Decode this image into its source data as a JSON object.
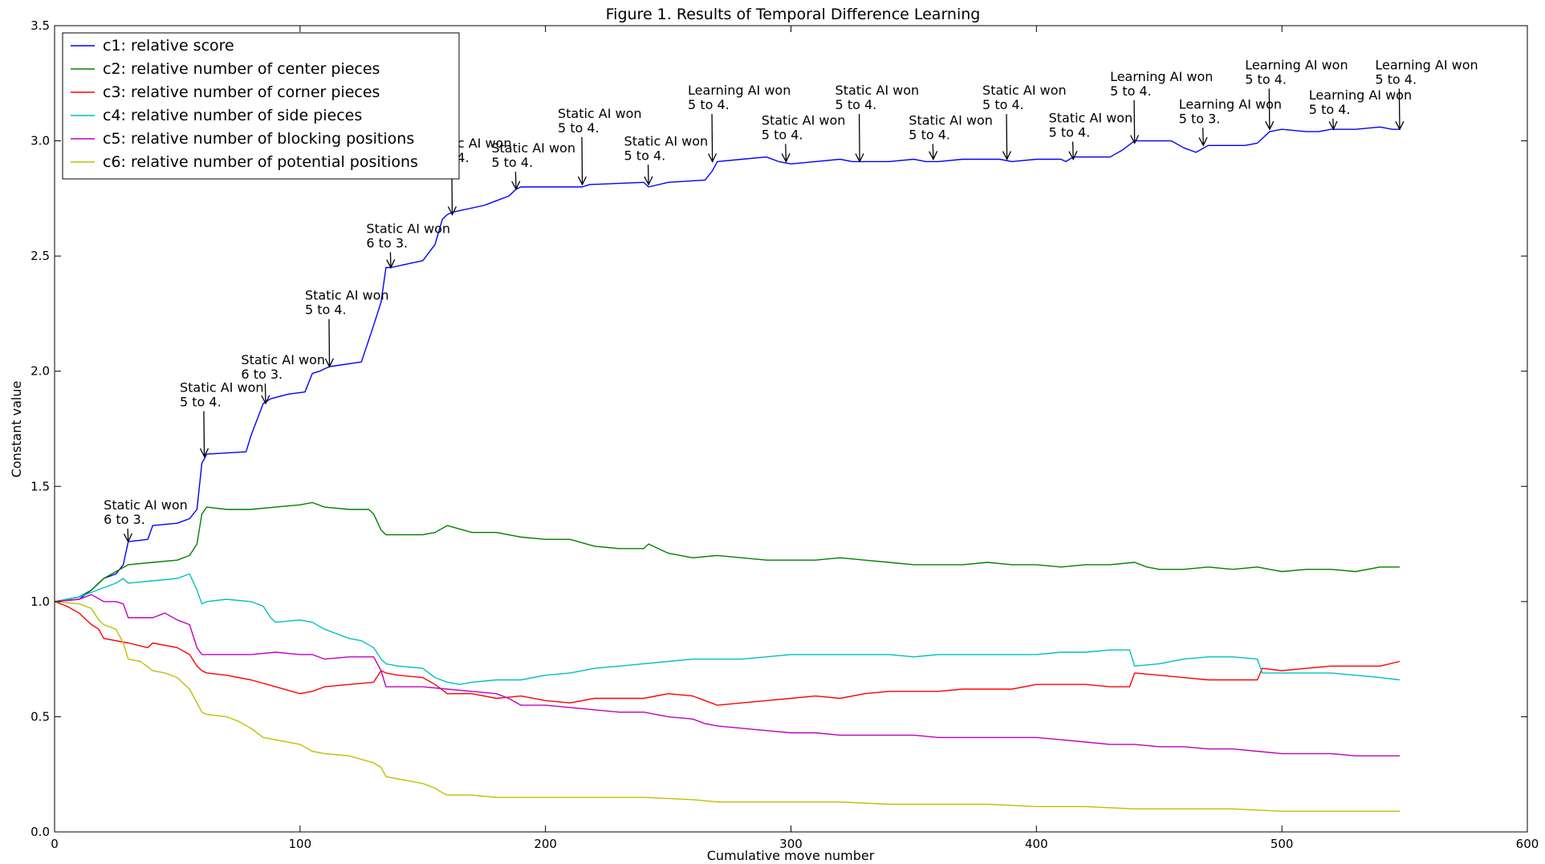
{
  "chart_data": {
    "type": "line",
    "title": "Figure 1. Results of Temporal Difference Learning",
    "xlabel": "Cumulative move number",
    "ylabel": "Constant value",
    "xlim": [
      0,
      600
    ],
    "ylim": [
      0.0,
      3.5
    ],
    "xticks": [
      "0",
      "100",
      "200",
      "300",
      "400",
      "500",
      "600"
    ],
    "yticks": [
      "0.0",
      "0.5",
      "1.0",
      "1.5",
      "2.0",
      "2.5",
      "3.0",
      "3.5"
    ],
    "grid": false,
    "legend_position": "top-left",
    "series": [
      {
        "name": "c1: relative score",
        "color": "#0000ff",
        "x": [
          0,
          10,
          15,
          20,
          25,
          28,
          30,
          38,
          40,
          50,
          55,
          58,
          60,
          62,
          78,
          80,
          85,
          88,
          95,
          102,
          105,
          108,
          110,
          112,
          125,
          130,
          133,
          135,
          137,
          150,
          155,
          158,
          160,
          162,
          175,
          180,
          185,
          188,
          190,
          200,
          215,
          218,
          240,
          242,
          250,
          265,
          268,
          270,
          280,
          290,
          295,
          300,
          310,
          320,
          325,
          330,
          340,
          350,
          355,
          360,
          370,
          380,
          385,
          390,
          400,
          410,
          412,
          415,
          430,
          435,
          440,
          450,
          455,
          460,
          465,
          470,
          485,
          490,
          495,
          500,
          510,
          515,
          520,
          530,
          540,
          545,
          548
        ],
        "y": [
          1.0,
          1.01,
          1.05,
          1.1,
          1.12,
          1.16,
          1.26,
          1.27,
          1.33,
          1.34,
          1.36,
          1.4,
          1.6,
          1.64,
          1.65,
          1.72,
          1.86,
          1.88,
          1.9,
          1.91,
          1.99,
          2.0,
          2.01,
          2.02,
          2.04,
          2.2,
          2.3,
          2.45,
          2.45,
          2.48,
          2.55,
          2.66,
          2.68,
          2.69,
          2.72,
          2.74,
          2.76,
          2.79,
          2.8,
          2.8,
          2.8,
          2.81,
          2.82,
          2.8,
          2.82,
          2.83,
          2.87,
          2.91,
          2.92,
          2.93,
          2.91,
          2.9,
          2.91,
          2.92,
          2.91,
          2.91,
          2.91,
          2.92,
          2.91,
          2.91,
          2.92,
          2.92,
          2.92,
          2.91,
          2.92,
          2.92,
          2.91,
          2.93,
          2.93,
          2.96,
          3.0,
          3.0,
          3.0,
          2.97,
          2.95,
          2.98,
          2.98,
          2.99,
          3.04,
          3.05,
          3.04,
          3.04,
          3.05,
          3.05,
          3.06,
          3.05,
          3.05
        ]
      },
      {
        "name": "c2: relative number of center pieces",
        "color": "#008000",
        "x": [
          0,
          10,
          15,
          20,
          30,
          40,
          50,
          55,
          58,
          60,
          62,
          70,
          80,
          90,
          100,
          105,
          110,
          120,
          128,
          130,
          133,
          135,
          140,
          150,
          155,
          160,
          170,
          180,
          190,
          200,
          210,
          220,
          230,
          240,
          242,
          250,
          260,
          270,
          280,
          290,
          300,
          310,
          320,
          330,
          340,
          350,
          360,
          370,
          380,
          390,
          400,
          410,
          420,
          430,
          440,
          445,
          450,
          460,
          470,
          480,
          490,
          495,
          500,
          510,
          520,
          530,
          540,
          548
        ],
        "y": [
          1.0,
          1.02,
          1.05,
          1.1,
          1.16,
          1.17,
          1.18,
          1.2,
          1.25,
          1.38,
          1.41,
          1.4,
          1.4,
          1.41,
          1.42,
          1.43,
          1.41,
          1.4,
          1.4,
          1.38,
          1.31,
          1.29,
          1.29,
          1.29,
          1.3,
          1.33,
          1.3,
          1.3,
          1.28,
          1.27,
          1.27,
          1.24,
          1.23,
          1.23,
          1.25,
          1.21,
          1.19,
          1.2,
          1.19,
          1.18,
          1.18,
          1.18,
          1.19,
          1.18,
          1.17,
          1.16,
          1.16,
          1.16,
          1.17,
          1.16,
          1.16,
          1.15,
          1.16,
          1.16,
          1.17,
          1.15,
          1.14,
          1.14,
          1.15,
          1.14,
          1.15,
          1.14,
          1.13,
          1.14,
          1.14,
          1.13,
          1.15,
          1.15
        ]
      },
      {
        "name": "c3: relative number of corner pieces",
        "color": "#ff0000",
        "x": [
          0,
          5,
          10,
          15,
          18,
          20,
          30,
          38,
          40,
          50,
          55,
          58,
          60,
          62,
          70,
          80,
          90,
          100,
          105,
          110,
          120,
          130,
          133,
          135,
          140,
          150,
          155,
          160,
          170,
          180,
          190,
          200,
          210,
          220,
          230,
          240,
          250,
          260,
          265,
          270,
          280,
          290,
          300,
          310,
          320,
          330,
          340,
          350,
          360,
          370,
          380,
          390,
          400,
          410,
          420,
          430,
          438,
          440,
          450,
          460,
          470,
          480,
          490,
          492,
          500,
          510,
          520,
          530,
          540,
          548
        ],
        "y": [
          1.0,
          0.98,
          0.95,
          0.9,
          0.88,
          0.84,
          0.82,
          0.8,
          0.82,
          0.8,
          0.77,
          0.72,
          0.7,
          0.69,
          0.68,
          0.66,
          0.63,
          0.6,
          0.61,
          0.63,
          0.64,
          0.65,
          0.7,
          0.69,
          0.68,
          0.67,
          0.64,
          0.6,
          0.6,
          0.58,
          0.59,
          0.57,
          0.56,
          0.58,
          0.58,
          0.58,
          0.6,
          0.59,
          0.57,
          0.55,
          0.56,
          0.57,
          0.58,
          0.59,
          0.58,
          0.6,
          0.61,
          0.61,
          0.61,
          0.62,
          0.62,
          0.62,
          0.64,
          0.64,
          0.64,
          0.63,
          0.63,
          0.69,
          0.68,
          0.67,
          0.66,
          0.66,
          0.66,
          0.71,
          0.7,
          0.71,
          0.72,
          0.72,
          0.72,
          0.74
        ]
      },
      {
        "name": "c4: relative number of side pieces",
        "color": "#00bfbf",
        "x": [
          0,
          10,
          15,
          20,
          25,
          28,
          30,
          40,
          50,
          55,
          58,
          60,
          62,
          70,
          80,
          85,
          88,
          90,
          100,
          105,
          110,
          115,
          120,
          125,
          130,
          133,
          135,
          140,
          150,
          155,
          160,
          165,
          170,
          180,
          190,
          200,
          210,
          220,
          230,
          240,
          250,
          260,
          270,
          280,
          290,
          300,
          310,
          320,
          330,
          340,
          350,
          360,
          370,
          380,
          390,
          400,
          410,
          420,
          430,
          438,
          440,
          450,
          460,
          470,
          480,
          490,
          492,
          500,
          510,
          520,
          530,
          540,
          548
        ],
        "y": [
          1.0,
          1.02,
          1.04,
          1.06,
          1.08,
          1.1,
          1.08,
          1.09,
          1.1,
          1.12,
          1.05,
          0.99,
          1.0,
          1.01,
          1.0,
          0.98,
          0.93,
          0.91,
          0.92,
          0.91,
          0.88,
          0.86,
          0.84,
          0.83,
          0.8,
          0.75,
          0.73,
          0.72,
          0.71,
          0.67,
          0.65,
          0.64,
          0.65,
          0.66,
          0.66,
          0.68,
          0.69,
          0.71,
          0.72,
          0.73,
          0.74,
          0.75,
          0.75,
          0.75,
          0.76,
          0.77,
          0.77,
          0.77,
          0.77,
          0.77,
          0.76,
          0.77,
          0.77,
          0.77,
          0.77,
          0.77,
          0.78,
          0.78,
          0.79,
          0.79,
          0.72,
          0.73,
          0.75,
          0.76,
          0.76,
          0.75,
          0.69,
          0.69,
          0.69,
          0.69,
          0.68,
          0.67,
          0.66
        ]
      },
      {
        "name": "c5: relative number of blocking positions",
        "color": "#bf00bf",
        "x": [
          0,
          10,
          15,
          20,
          25,
          28,
          30,
          40,
          45,
          50,
          55,
          58,
          60,
          62,
          70,
          80,
          90,
          100,
          105,
          110,
          120,
          130,
          133,
          135,
          140,
          150,
          160,
          170,
          180,
          185,
          190,
          200,
          210,
          220,
          230,
          240,
          250,
          260,
          265,
          270,
          280,
          290,
          300,
          310,
          320,
          330,
          340,
          350,
          360,
          370,
          380,
          390,
          400,
          410,
          420,
          430,
          440,
          450,
          460,
          470,
          480,
          490,
          500,
          510,
          520,
          530,
          540,
          548
        ],
        "y": [
          1.0,
          1.01,
          1.03,
          1.0,
          1.0,
          0.99,
          0.93,
          0.93,
          0.95,
          0.92,
          0.9,
          0.8,
          0.77,
          0.77,
          0.77,
          0.77,
          0.78,
          0.77,
          0.77,
          0.75,
          0.76,
          0.76,
          0.7,
          0.63,
          0.63,
          0.63,
          0.62,
          0.61,
          0.6,
          0.58,
          0.55,
          0.55,
          0.54,
          0.53,
          0.52,
          0.52,
          0.5,
          0.49,
          0.47,
          0.46,
          0.45,
          0.44,
          0.43,
          0.43,
          0.42,
          0.42,
          0.42,
          0.42,
          0.41,
          0.41,
          0.41,
          0.41,
          0.41,
          0.4,
          0.39,
          0.38,
          0.38,
          0.37,
          0.37,
          0.36,
          0.36,
          0.35,
          0.34,
          0.34,
          0.34,
          0.33,
          0.33,
          0.33
        ]
      },
      {
        "name": "c6: relative number of potential positions",
        "color": "#bfbf00",
        "x": [
          0,
          10,
          15,
          18,
          20,
          25,
          28,
          30,
          35,
          40,
          45,
          50,
          55,
          58,
          60,
          62,
          70,
          75,
          80,
          85,
          90,
          100,
          105,
          110,
          120,
          130,
          133,
          135,
          140,
          150,
          155,
          158,
          160,
          170,
          180,
          190,
          200,
          220,
          240,
          260,
          270,
          280,
          300,
          320,
          340,
          360,
          380,
          400,
          420,
          440,
          460,
          480,
          500,
          520,
          540,
          548
        ],
        "y": [
          1.0,
          0.99,
          0.97,
          0.92,
          0.9,
          0.88,
          0.82,
          0.75,
          0.74,
          0.7,
          0.69,
          0.67,
          0.62,
          0.56,
          0.52,
          0.51,
          0.5,
          0.48,
          0.45,
          0.41,
          0.4,
          0.38,
          0.35,
          0.34,
          0.33,
          0.3,
          0.28,
          0.24,
          0.23,
          0.21,
          0.19,
          0.17,
          0.16,
          0.16,
          0.15,
          0.15,
          0.15,
          0.15,
          0.15,
          0.14,
          0.13,
          0.13,
          0.13,
          0.13,
          0.12,
          0.12,
          0.12,
          0.11,
          0.11,
          0.1,
          0.1,
          0.1,
          0.09,
          0.09,
          0.09,
          0.09
        ]
      }
    ],
    "annotations": [
      {
        "lines": [
          "Static AI won",
          "6 to 3."
        ],
        "x": 30,
        "y": 1.26,
        "tx": 20,
        "ty": 1.4
      },
      {
        "lines": [
          "Static AI won",
          "5 to 4."
        ],
        "x": 61,
        "y": 1.63,
        "tx": 51,
        "ty": 1.91
      },
      {
        "lines": [
          "Static AI won",
          "6 to 3."
        ],
        "x": 86,
        "y": 1.86,
        "tx": 76,
        "ty": 2.03
      },
      {
        "lines": [
          "Static AI won",
          "5 to 4."
        ],
        "x": 112,
        "y": 2.02,
        "tx": 102,
        "ty": 2.31
      },
      {
        "lines": [
          "Static AI won",
          "6 to 3."
        ],
        "x": 137,
        "y": 2.45,
        "tx": 127,
        "ty": 2.6
      },
      {
        "lines": [
          "Static AI won",
          "5 to 4."
        ],
        "x": 162,
        "y": 2.68,
        "tx": 152,
        "ty": 2.97
      },
      {
        "lines": [
          "Static AI won",
          "5 to 4."
        ],
        "x": 188,
        "y": 2.79,
        "tx": 178,
        "ty": 2.95
      },
      {
        "lines": [
          "Static AI won",
          "5 to 4."
        ],
        "x": 215,
        "y": 2.81,
        "tx": 205,
        "ty": 3.1
      },
      {
        "lines": [
          "Static AI won",
          "5 to 4."
        ],
        "x": 242,
        "y": 2.81,
        "tx": 232,
        "ty": 2.98
      },
      {
        "lines": [
          "Learning AI won",
          "5 to 4."
        ],
        "x": 268,
        "y": 2.91,
        "tx": 258,
        "ty": 3.2
      },
      {
        "lines": [
          "Static AI won",
          "5 to 4."
        ],
        "x": 298,
        "y": 2.91,
        "tx": 288,
        "ty": 3.07
      },
      {
        "lines": [
          "Static AI won",
          "5 to 4."
        ],
        "x": 328,
        "y": 2.91,
        "tx": 318,
        "ty": 3.2
      },
      {
        "lines": [
          "Static AI won",
          "5 to 4."
        ],
        "x": 358,
        "y": 2.92,
        "tx": 348,
        "ty": 3.07
      },
      {
        "lines": [
          "Static AI won",
          "5 to 4."
        ],
        "x": 388,
        "y": 2.92,
        "tx": 378,
        "ty": 3.2
      },
      {
        "lines": [
          "Static AI won",
          "5 to 4."
        ],
        "x": 415,
        "y": 2.92,
        "tx": 405,
        "ty": 3.08
      },
      {
        "lines": [
          "Learning AI won",
          "5 to 4."
        ],
        "x": 440,
        "y": 2.99,
        "tx": 430,
        "ty": 3.26
      },
      {
        "lines": [
          "Learning AI won",
          "5 to 3."
        ],
        "x": 468,
        "y": 2.98,
        "tx": 458,
        "ty": 3.14
      },
      {
        "lines": [
          "Learning AI won",
          "5 to 4."
        ],
        "x": 495,
        "y": 3.05,
        "tx": 485,
        "ty": 3.31
      },
      {
        "lines": [
          "Learning AI won",
          "5 to 4."
        ],
        "x": 521,
        "y": 3.05,
        "tx": 511,
        "ty": 3.18
      },
      {
        "lines": [
          "Learning AI won",
          "5 to 4."
        ],
        "x": 548,
        "y": 3.05,
        "tx": 538,
        "ty": 3.31
      }
    ]
  }
}
